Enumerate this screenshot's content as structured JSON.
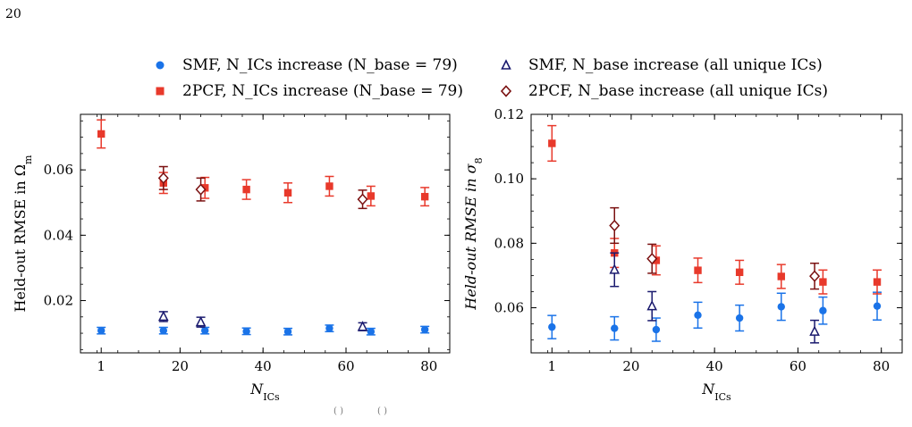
{
  "page_number": "20",
  "bottom_stray_text": [
    "(  )",
    "(  )"
  ],
  "legend": [
    {
      "label": "SMF, N_ICs increase (N_base = 79)",
      "series": "smf_ics"
    },
    {
      "label": "2PCF, N_ICs increase (N_base = 79)",
      "series": "pcf_ics"
    },
    {
      "label": "SMF, N_base increase (all unique ICs)",
      "series": "smf_base"
    },
    {
      "label": "2PCF, N_base increase (all unique ICs)",
      "series": "pcf_base"
    }
  ],
  "colors": {
    "smf_ics": "#1a73e8",
    "pcf_ics": "#e8392b",
    "smf_base": "#1a1a6e",
    "pcf_base": "#7a1010"
  },
  "chart_data": [
    {
      "type": "scatter",
      "panel": "left",
      "xlabel": "N_ICs",
      "ylabel": "Held-out RMSE in Ω_m",
      "xlim": [
        -4,
        85
      ],
      "ylim": [
        0.004,
        0.077
      ],
      "xticks": [
        20,
        40,
        60,
        80
      ],
      "xtick_labels": [
        "20",
        "40",
        "60",
        "80"
      ],
      "yticks": [
        0.02,
        0.04,
        0.06
      ],
      "ytick_labels": [
        "0.02",
        "0.04",
        "0.06"
      ],
      "series": [
        {
          "name": "SMF, N_ICs increase (N_base = 79)",
          "key": "smf_ics",
          "marker": "circle",
          "x": [
            1,
            16,
            26,
            36,
            46,
            56,
            66,
            79
          ],
          "y": [
            0.0108,
            0.0108,
            0.0108,
            0.0106,
            0.0105,
            0.0115,
            0.0105,
            0.0111
          ],
          "err": [
            0.001,
            0.001,
            0.001,
            0.001,
            0.001,
            0.001,
            0.001,
            0.001
          ]
        },
        {
          "name": "2PCF, N_ICs increase (N_base = 79)",
          "key": "pcf_ics",
          "marker": "square",
          "x": [
            1,
            16,
            26,
            36,
            46,
            56,
            66,
            79
          ],
          "y": [
            0.071,
            0.056,
            0.0545,
            0.054,
            0.053,
            0.055,
            0.052,
            0.0518
          ],
          "err": [
            0.0043,
            0.0032,
            0.0032,
            0.003,
            0.003,
            0.003,
            0.003,
            0.0028
          ]
        },
        {
          "name": "SMF, N_base increase (all unique ICs)",
          "key": "smf_base",
          "marker": "triangle",
          "x": [
            16,
            25,
            64
          ],
          "y": [
            0.0151,
            0.0134,
            0.012
          ],
          "err": [
            0.0015,
            0.0015,
            0.0012
          ]
        },
        {
          "name": "2PCF, N_base increase (all unique ICs)",
          "key": "pcf_base",
          "marker": "diamond",
          "x": [
            16,
            25,
            64
          ],
          "y": [
            0.0575,
            0.054,
            0.051
          ],
          "err": [
            0.0035,
            0.0035,
            0.0028
          ]
        }
      ]
    },
    {
      "type": "scatter",
      "panel": "right",
      "xlabel": "N_ICs",
      "ylabel": "Held-out RMSE in σ_8",
      "xlim": [
        -4,
        85
      ],
      "ylim": [
        0.046,
        0.12
      ],
      "xticks": [
        1,
        20,
        40,
        60,
        80
      ],
      "xtick_labels": [
        "1",
        "20",
        "40",
        "60",
        "80"
      ],
      "yticks": [
        0.06,
        0.08,
        0.1,
        0.12
      ],
      "ytick_labels": [
        "0.06",
        "0.08",
        "0.10",
        "0.12"
      ],
      "series": [
        {
          "name": "SMF, N_ICs increase (N_base = 79)",
          "key": "smf_ics",
          "marker": "circle",
          "x": [
            1,
            16,
            26,
            36,
            46,
            56,
            66,
            79
          ],
          "y": [
            0.054,
            0.0536,
            0.0532,
            0.0577,
            0.0568,
            0.0603,
            0.0591,
            0.0605
          ],
          "err": [
            0.0036,
            0.0036,
            0.0036,
            0.004,
            0.004,
            0.0042,
            0.0042,
            0.0043
          ]
        },
        {
          "name": "2PCF, N_ICs increase (N_base = 79)",
          "key": "pcf_ics",
          "marker": "square",
          "x": [
            1,
            16,
            26,
            36,
            46,
            56,
            66,
            79
          ],
          "y": [
            0.111,
            0.077,
            0.0747,
            0.0716,
            0.071,
            0.0697,
            0.068,
            0.068
          ],
          "err": [
            0.0055,
            0.0045,
            0.0045,
            0.0038,
            0.0037,
            0.0037,
            0.0037,
            0.0037
          ]
        },
        {
          "name": "SMF, N_base increase (all unique ICs)",
          "key": "smf_base",
          "marker": "triangle",
          "x": [
            16,
            25,
            64
          ],
          "y": [
            0.0718,
            0.0605,
            0.0526
          ],
          "err": [
            0.0052,
            0.0045,
            0.0035
          ]
        },
        {
          "name": "2PCF, N_base increase (all unique ICs)",
          "key": "pcf_base",
          "marker": "diamond",
          "x": [
            16,
            25,
            64
          ],
          "y": [
            0.0855,
            0.0752,
            0.0698
          ],
          "err": [
            0.0055,
            0.0045,
            0.004
          ]
        }
      ]
    }
  ]
}
